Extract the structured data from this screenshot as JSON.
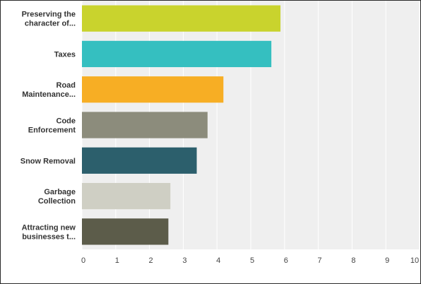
{
  "chart_data": {
    "type": "bar",
    "orientation": "horizontal",
    "title": "",
    "xlabel": "",
    "ylabel": "",
    "xlim": [
      0,
      10
    ],
    "x_ticks": [
      "0",
      "1",
      "2",
      "3",
      "4",
      "5",
      "6",
      "7",
      "8",
      "9",
      "10"
    ],
    "grid": true,
    "categories": [
      "Preserving the character of...",
      "Taxes",
      "Road Maintenance...",
      "Code Enforcement",
      "Snow Removal",
      "Garbage Collection",
      "Attracting new businesses t..."
    ],
    "category_label_lines": [
      [
        "Preserving the",
        "character of..."
      ],
      [
        "Taxes"
      ],
      [
        "Road",
        "Maintenance..."
      ],
      [
        "Code",
        "Enforcement"
      ],
      [
        "Snow Removal"
      ],
      [
        "Garbage",
        "Collection"
      ],
      [
        "Attracting new",
        "businesses t..."
      ]
    ],
    "values": [
      5.88,
      5.61,
      4.19,
      3.72,
      3.4,
      2.62,
      2.56
    ],
    "colors": [
      "#c9d32d",
      "#35bfc0",
      "#f7ae24",
      "#8c8c7c",
      "#2c5f6c",
      "#cfcfc4",
      "#5c5c4a"
    ],
    "plot_background": "#efefef",
    "grid_color": "#ffffff"
  }
}
